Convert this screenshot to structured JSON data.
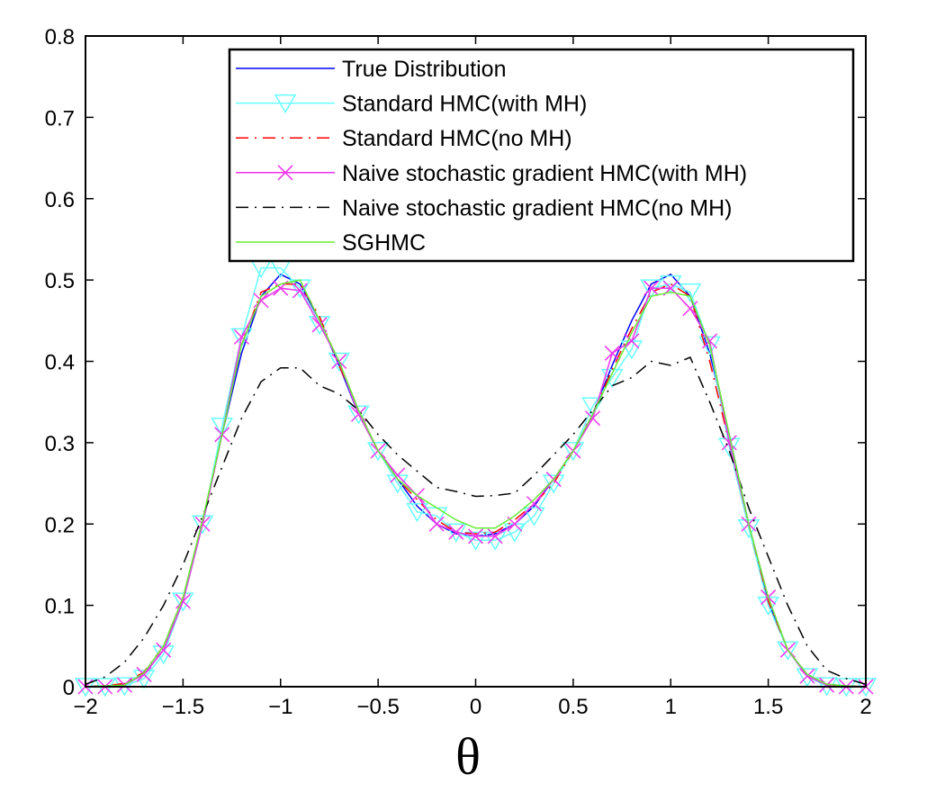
{
  "chart_data": {
    "type": "line",
    "title": "",
    "xlabel": "θ",
    "ylabel": "",
    "xlim": [
      -2,
      2
    ],
    "ylim": [
      0,
      0.8
    ],
    "grid": false,
    "legend_position": "top-right",
    "x_ticks": [
      -2,
      -1.5,
      -1,
      -0.5,
      0,
      0.5,
      1,
      1.5,
      2
    ],
    "x_tick_labels": [
      "−2",
      "−1.5",
      "−1",
      "−0.5",
      "0",
      "0.5",
      "1",
      "1.5",
      "2"
    ],
    "y_ticks": [
      0,
      0.1,
      0.2,
      0.3,
      0.4,
      0.5,
      0.6,
      0.7,
      0.8
    ],
    "y_tick_labels": [
      "0",
      "0.1",
      "0.2",
      "0.3",
      "0.4",
      "0.5",
      "0.6",
      "0.7",
      "0.8"
    ],
    "x": [
      -2,
      -1.9,
      -1.8,
      -1.7,
      -1.6,
      -1.5,
      -1.4,
      -1.3,
      -1.2,
      -1.1,
      -1,
      -0.9,
      -0.8,
      -0.7,
      -0.6,
      -0.5,
      -0.4,
      -0.3,
      -0.2,
      -0.1,
      0,
      0.1,
      0.2,
      0.3,
      0.4,
      0.5,
      0.6,
      0.7,
      0.8,
      0.9,
      1,
      1.1,
      1.2,
      1.3,
      1.4,
      1.5,
      1.6,
      1.7,
      1.8,
      1.9,
      2
    ],
    "series": [
      {
        "name": "True Distribution",
        "color": "#0000ff",
        "style": "solid",
        "marker": "none",
        "values": [
          0,
          0.001,
          0.003,
          0.015,
          0.045,
          0.105,
          0.2,
          0.31,
          0.41,
          0.48,
          0.507,
          0.495,
          0.45,
          0.395,
          0.335,
          0.29,
          0.255,
          0.222,
          0.2,
          0.188,
          0.185,
          0.188,
          0.2,
          0.222,
          0.255,
          0.29,
          0.335,
          0.395,
          0.45,
          0.495,
          0.507,
          0.48,
          0.41,
          0.31,
          0.2,
          0.105,
          0.045,
          0.015,
          0.003,
          0.001,
          0
        ]
      },
      {
        "name": "Standard HMC(with MH)",
        "color": "#66ffff",
        "style": "solid",
        "marker": "triangle-down",
        "values": [
          0,
          0,
          0.001,
          0.01,
          0.04,
          0.105,
          0.2,
          0.32,
          0.43,
          0.515,
          0.515,
          0.49,
          0.445,
          0.4,
          0.335,
          0.29,
          0.25,
          0.215,
          0.21,
          0.19,
          0.18,
          0.18,
          0.19,
          0.21,
          0.25,
          0.29,
          0.345,
          0.38,
          0.415,
          0.49,
          0.495,
          0.485,
          0.42,
          0.295,
          0.195,
          0.1,
          0.045,
          0.012,
          0.001,
          0,
          0
        ]
      },
      {
        "name": "Standard HMC(no MH)",
        "color": "#ff0000",
        "style": "dashdot",
        "marker": "none",
        "values": [
          0,
          0.001,
          0.004,
          0.018,
          0.05,
          0.11,
          0.2,
          0.31,
          0.42,
          0.485,
          0.495,
          0.495,
          0.455,
          0.395,
          0.34,
          0.29,
          0.255,
          0.23,
          0.205,
          0.19,
          0.188,
          0.19,
          0.205,
          0.225,
          0.25,
          0.29,
          0.335,
          0.39,
          0.44,
          0.485,
          0.495,
          0.48,
          0.4,
          0.3,
          0.2,
          0.105,
          0.045,
          0.013,
          0.003,
          0.001,
          0
        ]
      },
      {
        "name": "Naive stochastic gradient HMC(with MH)",
        "color": "#ee33ee",
        "style": "solid",
        "marker": "x",
        "values": [
          0,
          0,
          0.002,
          0.015,
          0.045,
          0.105,
          0.2,
          0.31,
          0.43,
          0.475,
          0.49,
          0.487,
          0.445,
          0.4,
          0.335,
          0.29,
          0.26,
          0.235,
          0.2,
          0.19,
          0.185,
          0.185,
          0.2,
          0.225,
          0.255,
          0.29,
          0.33,
          0.41,
          0.425,
          0.49,
          0.49,
          0.465,
          0.425,
          0.3,
          0.2,
          0.11,
          0.045,
          0.013,
          0.002,
          0,
          0
        ]
      },
      {
        "name": "Naive stochastic gradient HMC(no MH)",
        "color": "#000000",
        "style": "dashdot",
        "marker": "none",
        "values": [
          0.003,
          0.012,
          0.03,
          0.06,
          0.1,
          0.15,
          0.21,
          0.27,
          0.33,
          0.375,
          0.392,
          0.392,
          0.37,
          0.36,
          0.34,
          0.31,
          0.285,
          0.265,
          0.245,
          0.24,
          0.234,
          0.235,
          0.238,
          0.26,
          0.285,
          0.31,
          0.34,
          0.37,
          0.38,
          0.4,
          0.395,
          0.405,
          0.35,
          0.29,
          0.22,
          0.16,
          0.1,
          0.05,
          0.02,
          0.01,
          0.003
        ]
      },
      {
        "name": "SGHMC",
        "color": "#66ee33",
        "style": "solid",
        "marker": "none",
        "values": [
          0,
          0.001,
          0.002,
          0.017,
          0.05,
          0.11,
          0.205,
          0.31,
          0.42,
          0.48,
          0.495,
          0.5,
          0.45,
          0.4,
          0.34,
          0.29,
          0.255,
          0.235,
          0.22,
          0.205,
          0.195,
          0.195,
          0.21,
          0.23,
          0.255,
          0.29,
          0.335,
          0.385,
          0.435,
          0.48,
          0.485,
          0.48,
          0.42,
          0.31,
          0.2,
          0.11,
          0.045,
          0.015,
          0.003,
          0.001,
          0
        ]
      }
    ]
  }
}
